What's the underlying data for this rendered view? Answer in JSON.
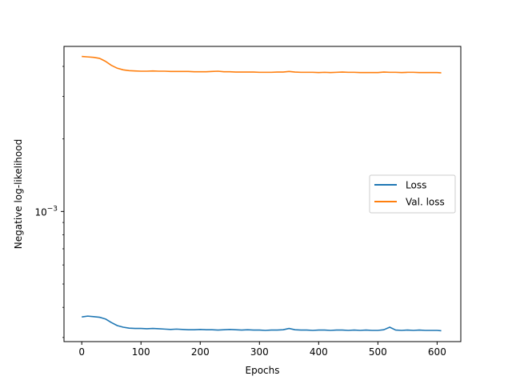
{
  "chart_data": {
    "type": "line",
    "title": "",
    "xlabel": "Epochs",
    "ylabel": "Negative log-likelihood",
    "xlim": [
      -30,
      640
    ],
    "ylim_log10": [
      -3.54,
      -2.315
    ],
    "yscale": "log",
    "grid": false,
    "legend_position": "center-right",
    "x_ticks": [
      0,
      100,
      200,
      300,
      400,
      500,
      600
    ],
    "x_tick_labels": [
      "0",
      "100",
      "200",
      "300",
      "400",
      "500",
      "600"
    ],
    "y_tick_values": [
      0.001
    ],
    "y_tick_labels": [
      {
        "base": "10",
        "exp": "−3"
      }
    ],
    "series": [
      {
        "name": "Loss",
        "color": "#1f77b4",
        "x": [
          0,
          10,
          20,
          30,
          40,
          50,
          60,
          70,
          80,
          90,
          100,
          110,
          120,
          130,
          140,
          150,
          160,
          170,
          180,
          190,
          200,
          210,
          220,
          230,
          240,
          250,
          260,
          270,
          280,
          290,
          300,
          310,
          320,
          330,
          340,
          350,
          360,
          370,
          380,
          390,
          400,
          410,
          420,
          430,
          440,
          450,
          460,
          470,
          480,
          490,
          500,
          510,
          520,
          530,
          540,
          550,
          560,
          570,
          580,
          590,
          600,
          607
        ],
        "y": [
          0.000365,
          0.000368,
          0.000366,
          0.000364,
          0.000358,
          0.000346,
          0.000336,
          0.000331,
          0.000328,
          0.000327,
          0.000327,
          0.000326,
          0.000327,
          0.000326,
          0.000325,
          0.000324,
          0.000325,
          0.000324,
          0.000323,
          0.000323,
          0.000324,
          0.000323,
          0.000323,
          0.000322,
          0.000323,
          0.000324,
          0.000323,
          0.000322,
          0.000323,
          0.000322,
          0.000322,
          0.000321,
          0.000322,
          0.000322,
          0.000323,
          0.000327,
          0.000323,
          0.000322,
          0.000322,
          0.000321,
          0.000322,
          0.000322,
          0.000321,
          0.000322,
          0.000322,
          0.000321,
          0.000322,
          0.000321,
          0.000322,
          0.000321,
          0.000321,
          0.000323,
          0.000331,
          0.000322,
          0.000321,
          0.000322,
          0.000321,
          0.000322,
          0.000321,
          0.000321,
          0.000321,
          0.00032
        ]
      },
      {
        "name": "Val. loss",
        "color": "#ff7f0e",
        "x": [
          0,
          10,
          20,
          30,
          40,
          50,
          60,
          70,
          80,
          90,
          100,
          110,
          120,
          130,
          140,
          150,
          160,
          170,
          180,
          190,
          200,
          210,
          220,
          230,
          240,
          250,
          260,
          270,
          280,
          290,
          300,
          310,
          320,
          330,
          340,
          350,
          360,
          370,
          380,
          390,
          400,
          410,
          420,
          430,
          440,
          450,
          460,
          470,
          480,
          490,
          500,
          510,
          520,
          530,
          540,
          550,
          560,
          570,
          580,
          590,
          600,
          607
        ],
        "y": [
          0.0044,
          0.00438,
          0.00436,
          0.00432,
          0.0042,
          0.00404,
          0.00393,
          0.00387,
          0.00384,
          0.00383,
          0.00382,
          0.00382,
          0.00383,
          0.00382,
          0.00382,
          0.00381,
          0.00381,
          0.00381,
          0.00381,
          0.0038,
          0.0038,
          0.0038,
          0.00381,
          0.00382,
          0.0038,
          0.0038,
          0.00379,
          0.00379,
          0.00379,
          0.00379,
          0.00378,
          0.00378,
          0.00378,
          0.00379,
          0.00379,
          0.00381,
          0.00379,
          0.00378,
          0.00378,
          0.00378,
          0.00377,
          0.00378,
          0.00377,
          0.00378,
          0.00379,
          0.00378,
          0.00378,
          0.00377,
          0.00377,
          0.00377,
          0.00377,
          0.00379,
          0.00378,
          0.00378,
          0.00377,
          0.00378,
          0.00378,
          0.00377,
          0.00377,
          0.00377,
          0.00377,
          0.00376
        ]
      }
    ]
  }
}
